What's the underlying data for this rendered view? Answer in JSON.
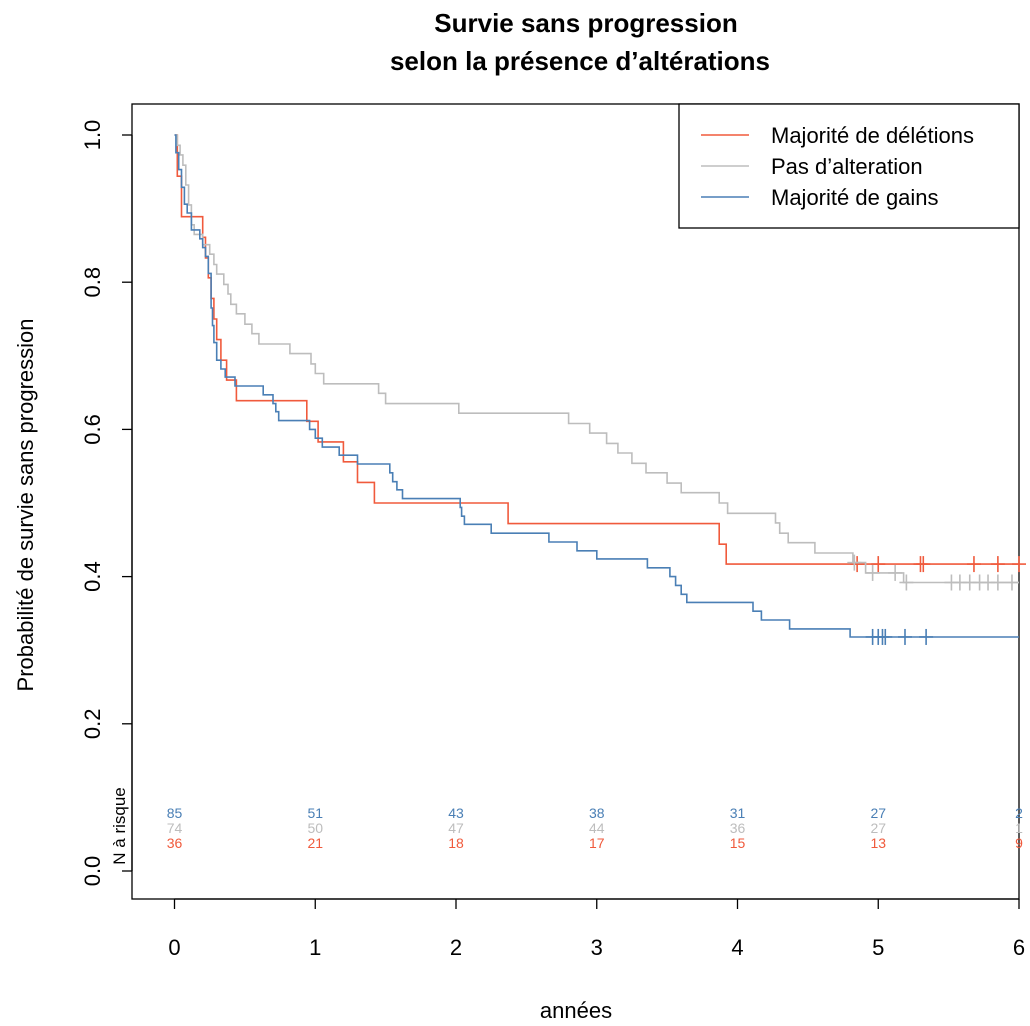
{
  "chart_data": {
    "type": "line",
    "title": [
      "Survie sans progression",
      "selon la présence d’altérations"
    ],
    "xlabel": "années",
    "ylabel": "Probabilité de survie sans progression",
    "xlim": [
      0,
      6
    ],
    "ylim": [
      0,
      1
    ],
    "xticks": [
      "0",
      "1",
      "2",
      "3",
      "4",
      "5",
      "6"
    ],
    "yticks": [
      "0.0",
      "0.2",
      "0.4",
      "0.6",
      "0.8",
      "1.0"
    ],
    "legend_position": "top-right",
    "series": [
      {
        "name": "Majorité de délétions",
        "color": "#f05a3c",
        "steps": [
          [
            0,
            1.0
          ],
          [
            0.02,
            0.944
          ],
          [
            0.05,
            0.889
          ],
          [
            0.2,
            0.861
          ],
          [
            0.22,
            0.833
          ],
          [
            0.24,
            0.806
          ],
          [
            0.26,
            0.778
          ],
          [
            0.28,
            0.75
          ],
          [
            0.3,
            0.722
          ],
          [
            0.33,
            0.694
          ],
          [
            0.37,
            0.667
          ],
          [
            0.44,
            0.639
          ],
          [
            0.94,
            0.611
          ],
          [
            1.02,
            0.583
          ],
          [
            1.2,
            0.556
          ],
          [
            1.3,
            0.528
          ],
          [
            1.42,
            0.5
          ],
          [
            2.37,
            0.472
          ],
          [
            3.87,
            0.444
          ],
          [
            3.92,
            0.417
          ],
          [
            6,
            0.417
          ]
        ],
        "censor": [
          4.85,
          5.0,
          5.3,
          5.32,
          5.68,
          5.85,
          6.0
        ]
      },
      {
        "name": "Pas d’alteration",
        "color": "#bdbdbd",
        "steps": [
          [
            0,
            1.0
          ],
          [
            0.02,
            0.986
          ],
          [
            0.04,
            0.973
          ],
          [
            0.06,
            0.959
          ],
          [
            0.08,
            0.932
          ],
          [
            0.1,
            0.905
          ],
          [
            0.12,
            0.878
          ],
          [
            0.14,
            0.865
          ],
          [
            0.2,
            0.851
          ],
          [
            0.25,
            0.838
          ],
          [
            0.28,
            0.824
          ],
          [
            0.3,
            0.811
          ],
          [
            0.35,
            0.797
          ],
          [
            0.38,
            0.784
          ],
          [
            0.4,
            0.77
          ],
          [
            0.44,
            0.757
          ],
          [
            0.5,
            0.743
          ],
          [
            0.55,
            0.73
          ],
          [
            0.6,
            0.716
          ],
          [
            0.82,
            0.703
          ],
          [
            0.97,
            0.689
          ],
          [
            1.0,
            0.676
          ],
          [
            1.06,
            0.662
          ],
          [
            1.45,
            0.649
          ],
          [
            1.5,
            0.635
          ],
          [
            2.02,
            0.622
          ],
          [
            2.8,
            0.608
          ],
          [
            2.95,
            0.595
          ],
          [
            3.07,
            0.581
          ],
          [
            3.15,
            0.568
          ],
          [
            3.25,
            0.554
          ],
          [
            3.35,
            0.541
          ],
          [
            3.5,
            0.527
          ],
          [
            3.6,
            0.514
          ],
          [
            3.87,
            0.5
          ],
          [
            3.93,
            0.486
          ],
          [
            4.27,
            0.473
          ],
          [
            4.3,
            0.459
          ],
          [
            4.36,
            0.446
          ],
          [
            4.55,
            0.432
          ],
          [
            4.82,
            0.419
          ],
          [
            4.91,
            0.405
          ],
          [
            5.18,
            0.392
          ],
          [
            5.3,
            0.392
          ],
          [
            6,
            0.392
          ]
        ],
        "censor": [
          4.83,
          4.96,
          5.12,
          5.2,
          5.52,
          5.58,
          5.65,
          5.72,
          5.78,
          5.85,
          5.95
        ]
      },
      {
        "name": "Majorité de gains",
        "color": "#4a7fb5",
        "steps": [
          [
            0,
            1.0
          ],
          [
            0.01,
            0.976
          ],
          [
            0.03,
            0.953
          ],
          [
            0.05,
            0.929
          ],
          [
            0.07,
            0.906
          ],
          [
            0.09,
            0.894
          ],
          [
            0.12,
            0.871
          ],
          [
            0.18,
            0.859
          ],
          [
            0.2,
            0.847
          ],
          [
            0.22,
            0.835
          ],
          [
            0.24,
            0.812
          ],
          [
            0.26,
            0.765
          ],
          [
            0.27,
            0.741
          ],
          [
            0.28,
            0.718
          ],
          [
            0.3,
            0.694
          ],
          [
            0.33,
            0.682
          ],
          [
            0.36,
            0.671
          ],
          [
            0.43,
            0.659
          ],
          [
            0.63,
            0.647
          ],
          [
            0.7,
            0.635
          ],
          [
            0.72,
            0.624
          ],
          [
            0.74,
            0.612
          ],
          [
            0.96,
            0.6
          ],
          [
            1.0,
            0.588
          ],
          [
            1.05,
            0.576
          ],
          [
            1.17,
            0.565
          ],
          [
            1.3,
            0.553
          ],
          [
            1.53,
            0.541
          ],
          [
            1.55,
            0.529
          ],
          [
            1.58,
            0.518
          ],
          [
            1.62,
            0.506
          ],
          [
            2.03,
            0.494
          ],
          [
            2.04,
            0.482
          ],
          [
            2.06,
            0.471
          ],
          [
            2.25,
            0.459
          ],
          [
            2.66,
            0.447
          ],
          [
            2.86,
            0.435
          ],
          [
            3.0,
            0.424
          ],
          [
            3.36,
            0.412
          ],
          [
            3.52,
            0.4
          ],
          [
            3.56,
            0.388
          ],
          [
            3.6,
            0.376
          ],
          [
            3.64,
            0.365
          ],
          [
            4.11,
            0.353
          ],
          [
            4.17,
            0.341
          ],
          [
            4.37,
            0.329
          ],
          [
            4.8,
            0.318
          ],
          [
            6,
            0.318
          ]
        ],
        "censor": [
          4.96,
          5.0,
          5.03,
          5.05,
          5.19,
          5.34
        ]
      }
    ],
    "at_risk": {
      "title": "N à risque",
      "times": [
        0,
        1,
        2,
        3,
        4,
        5,
        6
      ],
      "rows": [
        {
          "series": "Majorité de gains",
          "color": "#4a7fb5",
          "counts": [
            "85",
            "51",
            "43",
            "38",
            "31",
            "27",
            "2"
          ]
        },
        {
          "series": "Pas d’alteration",
          "color": "#bdbdbd",
          "counts": [
            "74",
            "50",
            "47",
            "44",
            "36",
            "27",
            "1"
          ]
        },
        {
          "series": "Majorité de délétions",
          "color": "#f05a3c",
          "counts": [
            "36",
            "21",
            "18",
            "17",
            "15",
            "13",
            "9"
          ]
        }
      ]
    }
  }
}
